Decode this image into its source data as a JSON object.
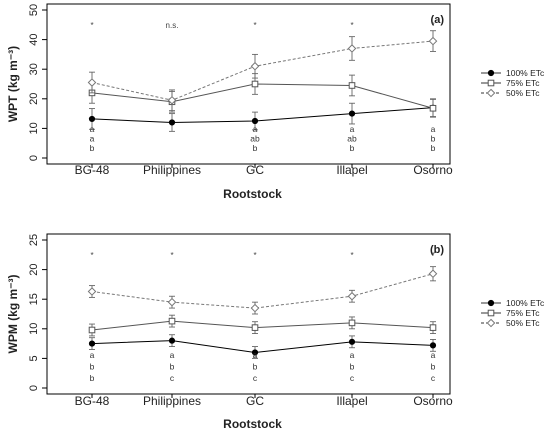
{
  "chart_data": [
    {
      "type": "line",
      "panel_label": "(a)",
      "xlabel": "Rootstock",
      "ylabel": "WPT (kg m⁻³)",
      "categories": [
        "BG-48",
        "Philippines",
        "GC",
        "Illapel",
        "Osorno"
      ],
      "ylim": [
        0,
        50
      ],
      "yticks": [
        "0",
        "10",
        "20",
        "30",
        "40",
        "50"
      ],
      "grid": false,
      "legend_position": "right",
      "series": [
        {
          "name": "100% ETc",
          "marker": "filled-circle",
          "line": "solid",
          "values": [
            13.2,
            12.0,
            12.5,
            15.0,
            17.0
          ],
          "errors": [
            3.5,
            3.0,
            3.0,
            3.5,
            3.0
          ]
        },
        {
          "name": "75% ETc",
          "marker": "open-square",
          "line": "solid",
          "values": [
            22.0,
            19.0,
            25.0,
            24.5,
            16.8
          ],
          "errors": [
            3.5,
            3.5,
            3.5,
            3.5,
            3.0
          ]
        },
        {
          "name": "50% ETc",
          "marker": "open-diamond",
          "line": "dashed",
          "values": [
            25.5,
            19.5,
            31.0,
            37.0,
            39.5
          ],
          "errors": [
            3.5,
            3.5,
            4.0,
            4.0,
            3.5
          ]
        }
      ],
      "significance": [
        "*",
        "n.s.",
        "*",
        "*",
        "*"
      ],
      "letters": [
        [
          "a",
          "a",
          "b"
        ],
        [
          "",
          "",
          ""
        ],
        [
          "a",
          "ab",
          "b"
        ],
        [
          "a",
          "ab",
          "b"
        ],
        [
          "a",
          "b",
          "b"
        ]
      ]
    },
    {
      "type": "line",
      "panel_label": "(b)",
      "xlabel": "Rootstock",
      "ylabel": "WPM (kg m⁻³)",
      "categories": [
        "BG-48",
        "Philippines",
        "GC",
        "Illapel",
        "Osorno"
      ],
      "ylim": [
        0,
        25
      ],
      "yticks": [
        "0",
        "5",
        "10",
        "15",
        "20",
        "25"
      ],
      "grid": false,
      "legend_position": "right",
      "series": [
        {
          "name": "100% ETc",
          "marker": "filled-circle",
          "line": "solid",
          "values": [
            7.5,
            8.0,
            6.0,
            7.8,
            7.2
          ],
          "errors": [
            1.0,
            1.0,
            1.0,
            1.0,
            1.0
          ]
        },
        {
          "name": "75% ETc",
          "marker": "open-square",
          "line": "solid",
          "values": [
            9.8,
            11.3,
            10.2,
            11.0,
            10.2
          ],
          "errors": [
            1.0,
            1.0,
            1.0,
            1.0,
            1.0
          ]
        },
        {
          "name": "50% ETc",
          "marker": "open-diamond",
          "line": "dashed",
          "values": [
            16.3,
            14.5,
            13.5,
            15.5,
            19.3
          ],
          "errors": [
            1.0,
            1.0,
            1.0,
            1.0,
            1.2
          ]
        }
      ],
      "significance": [
        "*",
        "*",
        "*",
        "*",
        "*"
      ],
      "letters": [
        [
          "a",
          "b",
          "b"
        ],
        [
          "a",
          "b",
          "c"
        ],
        [
          "a",
          "b",
          "c"
        ],
        [
          "a",
          "b",
          "c"
        ],
        [
          "a",
          "b",
          "c"
        ]
      ]
    }
  ]
}
